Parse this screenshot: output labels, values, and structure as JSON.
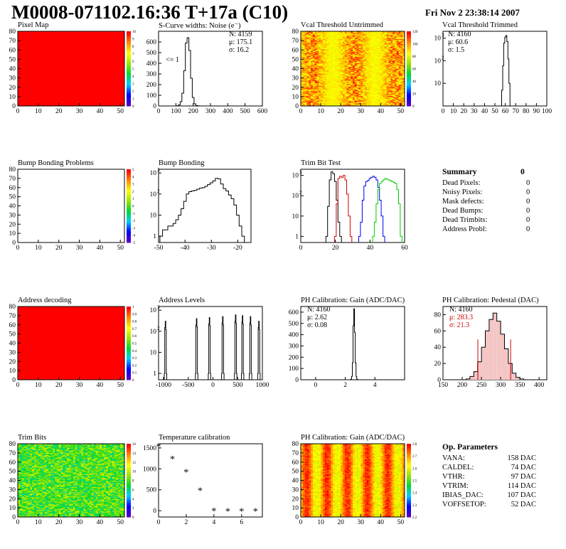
{
  "header": {
    "title": "M0008-071102.16:36 T+17a (C10)",
    "date": "Fri Nov  2 23:38:14 2007"
  },
  "panels": {
    "pixel_map": {
      "title": "Pixel Map",
      "scale_ticks": [
        "0",
        "1",
        "2",
        "3",
        "4",
        "5",
        "6",
        "7",
        "8",
        "9",
        "10"
      ]
    },
    "scurve": {
      "title": "S-Curve widths: Noise (e⁻)",
      "stats": [
        "N: 4159",
        "μ: 175.1",
        "σ: 16.2"
      ],
      "note": "<= 1"
    },
    "vcal_untrimmed": {
      "title": "Vcal Threshold Untrimmed",
      "scale_ticks": [
        "0",
        "20",
        "40",
        "60",
        "80",
        "100",
        "120"
      ]
    },
    "vcal_trimmed": {
      "title": "Vcal Threshold Trimmed",
      "stats": [
        "N: 4160",
        "μ: 60.6",
        "σ:  1.5"
      ]
    },
    "bump_problems": {
      "title": "Bump Bonding Problems",
      "scale_ticks": [
        "-5",
        "-4",
        "-3",
        "-2",
        "-1",
        "0",
        "1",
        "2",
        "3",
        "4",
        "5"
      ]
    },
    "bump_bonding": {
      "title": "Bump Bonding"
    },
    "trim_bit_test": {
      "title": "Trim Bit Test"
    },
    "summary": {
      "title": "Summary",
      "title_value": "0",
      "rows": [
        {
          "label": "Dead Pixels:",
          "value": "0"
        },
        {
          "label": "Noisy Pixels:",
          "value": "0"
        },
        {
          "label": "Mask defects:",
          "value": "0"
        },
        {
          "label": "Dead Bumps:",
          "value": "0"
        },
        {
          "label": "Dead Trimbits:",
          "value": "0"
        },
        {
          "label": "Address Probl:",
          "value": "0"
        }
      ]
    },
    "address_decoding": {
      "title": "Address decoding",
      "scale_ticks": [
        "0",
        "0.1",
        "0.2",
        "0.3",
        "0.4",
        "0.5",
        "0.6",
        "0.7",
        "0.8",
        "0.9",
        "1"
      ]
    },
    "address_levels": {
      "title": "Address Levels"
    },
    "ph_gain": {
      "title": "PH Calibration: Gain (ADC/DAC)",
      "stats": [
        "N: 4160",
        "μ: 2.62",
        "σ: 0.08"
      ]
    },
    "ph_pedestal": {
      "title": "PH Calibration: Pedestal (DAC)",
      "stats": [
        "N: 4160",
        "μ: 283.3",
        "σ: 21.3"
      ]
    },
    "trim_bits": {
      "title": "Trim Bits",
      "scale_ticks": [
        "0",
        "2",
        "4",
        "6",
        "8",
        "10",
        "12",
        "14",
        "16"
      ]
    },
    "temperature": {
      "title": "Temperature calibration"
    },
    "ph_gain_map": {
      "title": "PH Calibration: Gain (ADC/DAC)",
      "scale_ticks": [
        "2.2",
        "2.3",
        "2.4",
        "2.5",
        "2.6",
        "2.7",
        "2.8"
      ]
    },
    "op_params": {
      "title": "Op. Parameters",
      "rows": [
        {
          "label": "VANA:",
          "value": "158 DAC"
        },
        {
          "label": "CALDEL:",
          "value": "74 DAC"
        },
        {
          "label": "VTHR:",
          "value": "97 DAC"
        },
        {
          "label": "VTRIM:",
          "value": "114 DAC"
        },
        {
          "label": "IBIAS_DAC:",
          "value": "107 DAC"
        },
        {
          "label": "VOFFSETOP:",
          "value": "52 DAC"
        }
      ]
    }
  },
  "colors": {
    "red_fill": "#ff0000",
    "line": "#000000",
    "blue": "#0000ee",
    "green": "#00cc00",
    "pedestal_red": "#cc0000"
  },
  "chart_data": [
    {
      "type": "heatmap",
      "title": "Pixel Map",
      "xlim": [
        0,
        52
      ],
      "ylim": [
        0,
        80
      ],
      "xticks": [
        0,
        10,
        20,
        30,
        40,
        50
      ],
      "yticks": [
        0,
        10,
        20,
        30,
        40,
        50,
        60,
        70,
        80
      ],
      "uniform_value": 10
    },
    {
      "type": "bar",
      "title": "S-Curve widths: Noise (e⁻)",
      "xlim": [
        0,
        600
      ],
      "ylim": [
        0,
        700
      ],
      "xticks": [
        0,
        100,
        200,
        300,
        400,
        500,
        600
      ],
      "yticks": [
        0,
        100,
        200,
        300,
        400,
        500,
        600
      ],
      "x": [
        110,
        120,
        130,
        140,
        150,
        160,
        170,
        180,
        190,
        200,
        210,
        220,
        230
      ],
      "values": [
        2,
        10,
        40,
        120,
        330,
        590,
        640,
        520,
        260,
        80,
        20,
        4,
        1
      ]
    },
    {
      "type": "heatmap",
      "title": "Vcal Threshold Untrimmed",
      "xlim": [
        0,
        52
      ],
      "ylim": [
        0,
        80
      ],
      "xticks": [
        0,
        10,
        20,
        30,
        40,
        50
      ],
      "yticks": [
        0,
        10,
        20,
        30,
        40,
        50,
        60,
        70,
        80
      ]
    },
    {
      "type": "bar",
      "title": "Vcal Threshold Trimmed",
      "log_y": true,
      "xlim": [
        0,
        100
      ],
      "ylim": [
        1,
        2000
      ],
      "xticks": [
        0,
        10,
        20,
        30,
        40,
        50,
        60,
        70,
        80,
        90,
        100
      ],
      "yticks": [
        10,
        100,
        1000
      ],
      "x": [
        56,
        57,
        58,
        59,
        60,
        61,
        62,
        63,
        64,
        65
      ],
      "values": [
        1,
        5,
        60,
        600,
        1100,
        1300,
        700,
        120,
        10,
        1
      ]
    },
    {
      "type": "heatmap",
      "title": "Bump Bonding Problems",
      "xlim": [
        0,
        52
      ],
      "ylim": [
        0,
        80
      ],
      "xticks": [
        0,
        10,
        20,
        30,
        40,
        50
      ],
      "yticks": [
        0,
        10,
        20,
        30,
        40,
        50,
        60,
        70,
        80
      ]
    },
    {
      "type": "bar",
      "title": "Bump Bonding",
      "log_y": true,
      "xlim": [
        -50,
        -15
      ],
      "ylim": [
        0.5,
        1500
      ],
      "xticks": [
        -50,
        -40,
        -30,
        -20
      ],
      "yticks": [
        1,
        10,
        100,
        1000
      ],
      "x": [
        -49,
        -48,
        -47,
        -46,
        -45,
        -44,
        -43,
        -42,
        -41,
        -40,
        -39,
        -38,
        -37,
        -36,
        -35,
        -34,
        -33,
        -32,
        -31,
        -30,
        -29,
        -28,
        -27,
        -26,
        -25,
        -24,
        -23,
        -22,
        -21,
        -20,
        -19,
        -18
      ],
      "values": [
        1,
        2,
        2,
        3,
        3,
        4,
        6,
        10,
        20,
        45,
        100,
        130,
        140,
        150,
        170,
        190,
        200,
        230,
        280,
        340,
        420,
        560,
        520,
        300,
        180,
        140,
        90,
        60,
        30,
        10,
        3,
        1
      ]
    },
    {
      "type": "line",
      "title": "Trim Bit Test",
      "log_y": true,
      "xlim": [
        0,
        60
      ],
      "ylim": [
        0.5,
        2000
      ],
      "xticks": [
        0,
        20,
        40,
        60
      ],
      "yticks": [
        1,
        10,
        100,
        1000
      ],
      "series": [
        {
          "color": "#000000",
          "x": [
            15,
            16,
            17,
            18,
            19,
            20,
            21,
            22,
            23
          ],
          "values": [
            1,
            30,
            600,
            1500,
            1200,
            500,
            60,
            5,
            1
          ]
        },
        {
          "color": "#cc0000",
          "x": [
            20,
            21,
            22,
            23,
            24,
            25,
            26,
            27,
            28,
            29
          ],
          "values": [
            1,
            40,
            700,
            900,
            800,
            1000,
            600,
            120,
            10,
            1
          ]
        },
        {
          "color": "#0000ee",
          "x": [
            34,
            35,
            36,
            37,
            38,
            39,
            40,
            41,
            42,
            43,
            44,
            45,
            46,
            47,
            48
          ],
          "values": [
            1,
            5,
            60,
            300,
            500,
            550,
            700,
            800,
            900,
            800,
            600,
            250,
            60,
            10,
            1
          ]
        },
        {
          "color": "#00cc00",
          "x": [
            42,
            43,
            44,
            45,
            46,
            47,
            48,
            49,
            50,
            51,
            52,
            53,
            54,
            55,
            56,
            57,
            58
          ],
          "values": [
            1,
            5,
            40,
            200,
            400,
            500,
            600,
            700,
            650,
            600,
            550,
            500,
            450,
            400,
            200,
            40,
            1
          ]
        }
      ]
    },
    {
      "type": "heatmap",
      "title": "Address decoding",
      "xlim": [
        0,
        52
      ],
      "ylim": [
        0,
        80
      ],
      "xticks": [
        0,
        10,
        20,
        30,
        40,
        50
      ],
      "yticks": [
        0,
        10,
        20,
        30,
        40,
        50,
        60,
        70,
        80
      ],
      "uniform_value": 1
    },
    {
      "type": "bar",
      "title": "Address Levels",
      "log_y": true,
      "xlim": [
        -1100,
        1000
      ],
      "ylim": [
        0.5,
        1500
      ],
      "xticks": [
        -1000,
        -500,
        0,
        500,
        1000
      ],
      "yticks": [
        1,
        10,
        100,
        1000
      ],
      "x": [
        -960,
        -330,
        -70,
        200,
        460,
        600,
        760,
        930
      ],
      "values": [
        300,
        400,
        450,
        500,
        600,
        550,
        500,
        300
      ]
    },
    {
      "type": "bar",
      "title": "PH Calibration: Gain (ADC/DAC)",
      "xlim": [
        -1,
        6
      ],
      "ylim": [
        0,
        650
      ],
      "xticks": [
        0,
        2,
        4
      ],
      "yticks": [
        0,
        100,
        200,
        300,
        400,
        500,
        600
      ],
      "x": [
        2.4,
        2.45,
        2.5,
        2.55,
        2.6,
        2.65,
        2.7,
        2.75,
        2.8
      ],
      "values": [
        5,
        30,
        150,
        480,
        630,
        420,
        150,
        30,
        5
      ]
    },
    {
      "type": "bar",
      "title": "PH Calibration: Pedestal (DAC)",
      "xlim": [
        150,
        420
      ],
      "ylim": [
        0,
        90
      ],
      "xticks": [
        150,
        200,
        250,
        300,
        350,
        400
      ],
      "yticks": [
        0,
        20,
        40,
        60,
        80
      ],
      "x": [
        215,
        225,
        235,
        245,
        255,
        265,
        275,
        285,
        295,
        305,
        315,
        325,
        335,
        345,
        355
      ],
      "values": [
        1,
        4,
        10,
        22,
        40,
        60,
        74,
        82,
        72,
        56,
        38,
        20,
        8,
        3,
        1
      ]
    },
    {
      "type": "heatmap",
      "title": "Trim Bits",
      "xlim": [
        0,
        52
      ],
      "ylim": [
        0,
        80
      ],
      "xticks": [
        0,
        10,
        20,
        30,
        40,
        50
      ],
      "yticks": [
        0,
        10,
        20,
        30,
        40,
        50,
        60,
        70,
        80
      ]
    },
    {
      "type": "scatter",
      "title": "Temperature calibration",
      "xlim": [
        0,
        7.5
      ],
      "ylim": [
        -150,
        1600
      ],
      "xticks": [
        0,
        2,
        4,
        6
      ],
      "yticks": [
        0,
        500,
        1000,
        1500
      ],
      "x": [
        0,
        1,
        2,
        3,
        4,
        5,
        6,
        7
      ],
      "values": [
        1520,
        1230,
        910,
        470,
        -10,
        -20,
        -20,
        -20
      ]
    },
    {
      "type": "heatmap",
      "title": "PH Calibration: Gain (ADC/DAC)",
      "xlim": [
        0,
        52
      ],
      "ylim": [
        0,
        80
      ],
      "xticks": [
        0,
        10,
        20,
        30,
        40,
        50
      ],
      "yticks": [
        0,
        10,
        20,
        30,
        40,
        50,
        60,
        70,
        80
      ]
    }
  ]
}
